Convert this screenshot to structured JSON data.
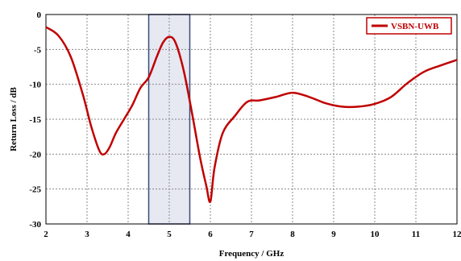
{
  "chart_data": {
    "type": "line",
    "title": "",
    "xlabel": "Frequency / GHz",
    "ylabel": "Return Loss / dB",
    "xlim": [
      2,
      12
    ],
    "ylim": [
      -30,
      0
    ],
    "x_ticks": [
      "2",
      "3",
      "4",
      "5",
      "6",
      "7",
      "8",
      "9",
      "10",
      "11",
      "12"
    ],
    "y_ticks": [
      "0",
      "-5",
      "-10",
      "-15",
      "-20",
      "-25",
      "-30"
    ],
    "grid": true,
    "legend_position": "top-right",
    "highlight_band": [
      4.5,
      5.5
    ],
    "series": [
      {
        "name": "VSBN-UWB",
        "color": "#c00000",
        "x": [
          2.0,
          2.3,
          2.6,
          2.9,
          3.1,
          3.3,
          3.42,
          3.55,
          3.7,
          3.9,
          4.1,
          4.3,
          4.5,
          4.7,
          4.85,
          5.0,
          5.15,
          5.35,
          5.55,
          5.75,
          5.9,
          6.0,
          6.1,
          6.3,
          6.6,
          6.9,
          7.2,
          7.6,
          8.0,
          8.4,
          8.8,
          9.2,
          9.6,
          10.0,
          10.4,
          10.8,
          11.2,
          11.6,
          12.0
        ],
        "y": [
          -1.8,
          -3.0,
          -6.0,
          -11.5,
          -16.0,
          -19.5,
          -20.0,
          -19.0,
          -17.0,
          -15.0,
          -13.0,
          -10.5,
          -9.0,
          -6.0,
          -4.0,
          -3.2,
          -4.0,
          -8.0,
          -14.0,
          -20.5,
          -24.5,
          -26.8,
          -22.0,
          -17.0,
          -14.5,
          -12.5,
          -12.3,
          -11.8,
          -11.2,
          -11.8,
          -12.7,
          -13.2,
          -13.2,
          -12.8,
          -11.8,
          -9.8,
          -8.2,
          -7.3,
          -6.5
        ]
      }
    ]
  }
}
